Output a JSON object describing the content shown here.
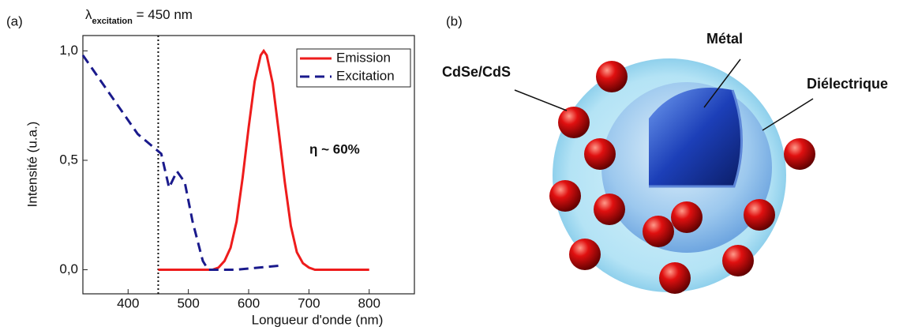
{
  "chart_data": {
    "type": "line",
    "panel_label": "(a)",
    "annotation_parts": [
      "λ",
      "excitation",
      " = 450 nm"
    ],
    "annotation_eta": "η ~ 60%",
    "x_label": "Longueur d'onde (nm)",
    "y_label": "Intensité (u.a.)",
    "xlim": [
      325,
      875
    ],
    "ylim": [
      -0.11,
      1.07
    ],
    "xticks": [
      400,
      500,
      600,
      700,
      800
    ],
    "yticks": [
      {
        "value": 0,
        "label": "0,0"
      },
      {
        "value": 0.5,
        "label": "0,5"
      },
      {
        "value": 1,
        "label": "1,0"
      }
    ],
    "vline": 450,
    "legend": "upper right",
    "series": [
      {
        "name": "Emission",
        "color": "#ee1c1c",
        "dash": false,
        "x": [
          450,
          540,
          550,
          560,
          570,
          580,
          590,
          600,
          610,
          620,
          625,
          630,
          640,
          650,
          660,
          670,
          680,
          690,
          700,
          710,
          800
        ],
        "values": [
          0,
          0,
          0.01,
          0.04,
          0.1,
          0.22,
          0.42,
          0.65,
          0.86,
          0.98,
          1.0,
          0.98,
          0.85,
          0.63,
          0.4,
          0.2,
          0.08,
          0.03,
          0.01,
          0,
          0
        ]
      },
      {
        "name": "Excitation",
        "color": "#1a1a8c",
        "dash": true,
        "x": [
          325,
          416,
          455,
          468,
          481,
          494,
          507,
          524,
          533,
          579,
          657
        ],
        "values": [
          0.98,
          0.62,
          0.53,
          0.375,
          0.45,
          0.4,
          0.22,
          0.04,
          0,
          0,
          0.02
        ]
      }
    ]
  },
  "diagram": {
    "panel_label": "(b)",
    "labels": {
      "core": "Métal",
      "dots": "CdSe/CdS",
      "shell": "Diélectrique"
    }
  }
}
